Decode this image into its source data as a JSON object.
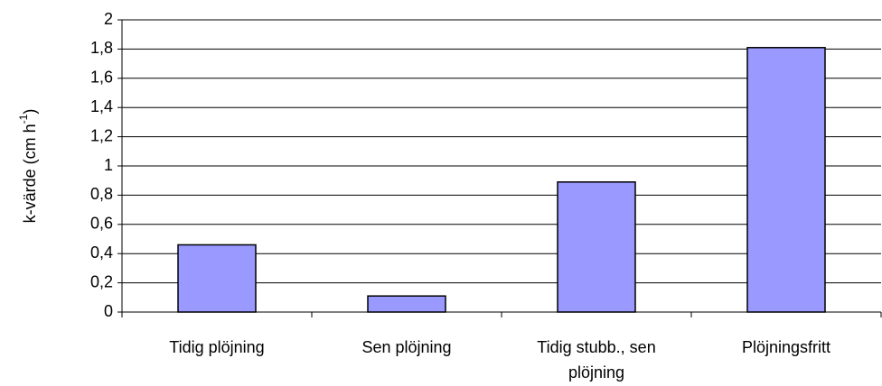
{
  "chart_data": {
    "type": "bar",
    "ylabel": "k-värde (cm h",
    "ylabel_sup": "-1",
    "ylabel_end": ")",
    "categories": [
      "Tidig plöjning",
      "Sen plöjning",
      "Tidig stubb., sen plöjning",
      "Plöjningsfritt"
    ],
    "values": [
      0.46,
      0.11,
      0.89,
      1.81
    ],
    "color": "#9999ff",
    "ylim": [
      0,
      2
    ],
    "yticks": [
      0,
      {
        "value": 0.2,
        "label": "0,2"
      },
      {
        "value": 0.4,
        "label": "0,4"
      },
      {
        "value": 0.6,
        "label": "0,6"
      },
      {
        "value": 0.8,
        "label": "0,8"
      },
      1,
      {
        "value": 1.2,
        "label": "1,2"
      },
      {
        "value": 1.4,
        "label": "1,4"
      },
      {
        "value": 1.6,
        "label": "1,6"
      },
      {
        "value": 1.8,
        "label": "1,8"
      },
      2
    ],
    "grid": true
  }
}
